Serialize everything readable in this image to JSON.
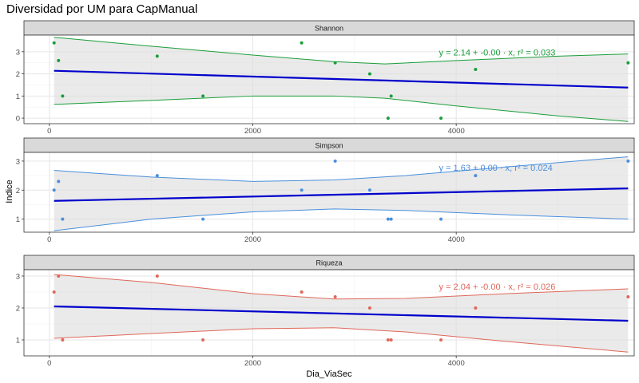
{
  "title": "Diversidad por UM para CapManual",
  "chart_data": {
    "type": "scatter",
    "xlabel": "Dia_ViaSec",
    "ylabel": "Indice",
    "xlim": [
      -250,
      5750
    ],
    "xticks": [
      0,
      2000,
      4000
    ],
    "xtick_labels": [
      "0",
      "2000",
      "4000"
    ],
    "grid": true,
    "fit_color": "#0000cc",
    "panels": [
      {
        "name": "Shannon",
        "color": "#1a9e3a",
        "ylim": [
          -0.25,
          3.75
        ],
        "yticks": [
          0,
          1,
          2,
          3
        ],
        "ytick_labels": [
          "0",
          "1",
          "2",
          "3"
        ],
        "equation": "y = 2.14 + -0.00 · x,  r² = 0.033",
        "points": [
          [
            46,
            3.4
          ],
          [
            90,
            2.6
          ],
          [
            130,
            1.0
          ],
          [
            1060,
            2.8
          ],
          [
            1510,
            1.0
          ],
          [
            2480,
            3.4
          ],
          [
            2810,
            2.5
          ],
          [
            3150,
            2.0
          ],
          [
            3330,
            0.0
          ],
          [
            3360,
            1.0
          ],
          [
            3850,
            0.0
          ],
          [
            4190,
            2.2
          ],
          [
            5690,
            2.5
          ]
        ],
        "fit": [
          [
            46,
            2.14
          ],
          [
            5690,
            1.38
          ]
        ],
        "ci_upper": [
          [
            46,
            3.65
          ],
          [
            1000,
            3.25
          ],
          [
            2000,
            2.85
          ],
          [
            2800,
            2.55
          ],
          [
            3300,
            2.45
          ],
          [
            4000,
            2.6
          ],
          [
            5000,
            2.8
          ],
          [
            5690,
            2.9
          ]
        ],
        "ci_lower": [
          [
            46,
            0.62
          ],
          [
            1000,
            0.8
          ],
          [
            2000,
            1.0
          ],
          [
            2800,
            1.0
          ],
          [
            3300,
            0.9
          ],
          [
            4000,
            0.55
          ],
          [
            5000,
            0.1
          ],
          [
            5690,
            -0.15
          ]
        ]
      },
      {
        "name": "Simpson",
        "color": "#4a8fdc",
        "ylim": [
          0.55,
          3.3
        ],
        "yticks": [
          1,
          2,
          3
        ],
        "ytick_labels": [
          "1",
          "2",
          "3"
        ],
        "equation": "y = 1.63 + 0.00 · x,  r² = 0.024",
        "points": [
          [
            46,
            2.0
          ],
          [
            90,
            2.3
          ],
          [
            130,
            1.0
          ],
          [
            1060,
            2.5
          ],
          [
            1510,
            1.0
          ],
          [
            2480,
            2.0
          ],
          [
            2810,
            3.0
          ],
          [
            3150,
            2.0
          ],
          [
            3330,
            1.0
          ],
          [
            3360,
            1.0
          ],
          [
            3850,
            1.0
          ],
          [
            4190,
            2.5
          ],
          [
            5690,
            3.0
          ]
        ],
        "fit": [
          [
            46,
            1.63
          ],
          [
            5690,
            2.06
          ]
        ],
        "ci_upper": [
          [
            46,
            2.68
          ],
          [
            1000,
            2.45
          ],
          [
            2000,
            2.3
          ],
          [
            2800,
            2.35
          ],
          [
            3500,
            2.5
          ],
          [
            4500,
            2.8
          ],
          [
            5690,
            3.15
          ]
        ],
        "ci_lower": [
          [
            46,
            0.6
          ],
          [
            1000,
            1.0
          ],
          [
            2000,
            1.25
          ],
          [
            2800,
            1.35
          ],
          [
            3500,
            1.3
          ],
          [
            4500,
            1.15
          ],
          [
            5690,
            1.0
          ]
        ]
      },
      {
        "name": "Riqueza",
        "color": "#e0675a",
        "ylim": [
          0.5,
          3.2
        ],
        "yticks": [
          1,
          2,
          3
        ],
        "ytick_labels": [
          "1",
          "2",
          "3"
        ],
        "equation": "y = 2.04 + -0.00 · x,  r² = 0.026",
        "points": [
          [
            46,
            2.5
          ],
          [
            90,
            3.0
          ],
          [
            130,
            1.0
          ],
          [
            1060,
            3.0
          ],
          [
            1510,
            1.0
          ],
          [
            2480,
            2.5
          ],
          [
            2810,
            2.35
          ],
          [
            3150,
            2.0
          ],
          [
            3330,
            1.0
          ],
          [
            3360,
            1.0
          ],
          [
            3850,
            1.0
          ],
          [
            4190,
            2.0
          ],
          [
            5690,
            2.35
          ]
        ],
        "fit": [
          [
            46,
            2.05
          ],
          [
            5690,
            1.6
          ]
        ],
        "ci_upper": [
          [
            46,
            3.05
          ],
          [
            1000,
            2.8
          ],
          [
            2000,
            2.45
          ],
          [
            2800,
            2.28
          ],
          [
            3500,
            2.3
          ],
          [
            4500,
            2.45
          ],
          [
            5690,
            2.6
          ]
        ],
        "ci_lower": [
          [
            46,
            1.05
          ],
          [
            1000,
            1.2
          ],
          [
            2000,
            1.35
          ],
          [
            2800,
            1.38
          ],
          [
            3500,
            1.25
          ],
          [
            4500,
            0.95
          ],
          [
            5690,
            0.62
          ]
        ]
      }
    ]
  }
}
